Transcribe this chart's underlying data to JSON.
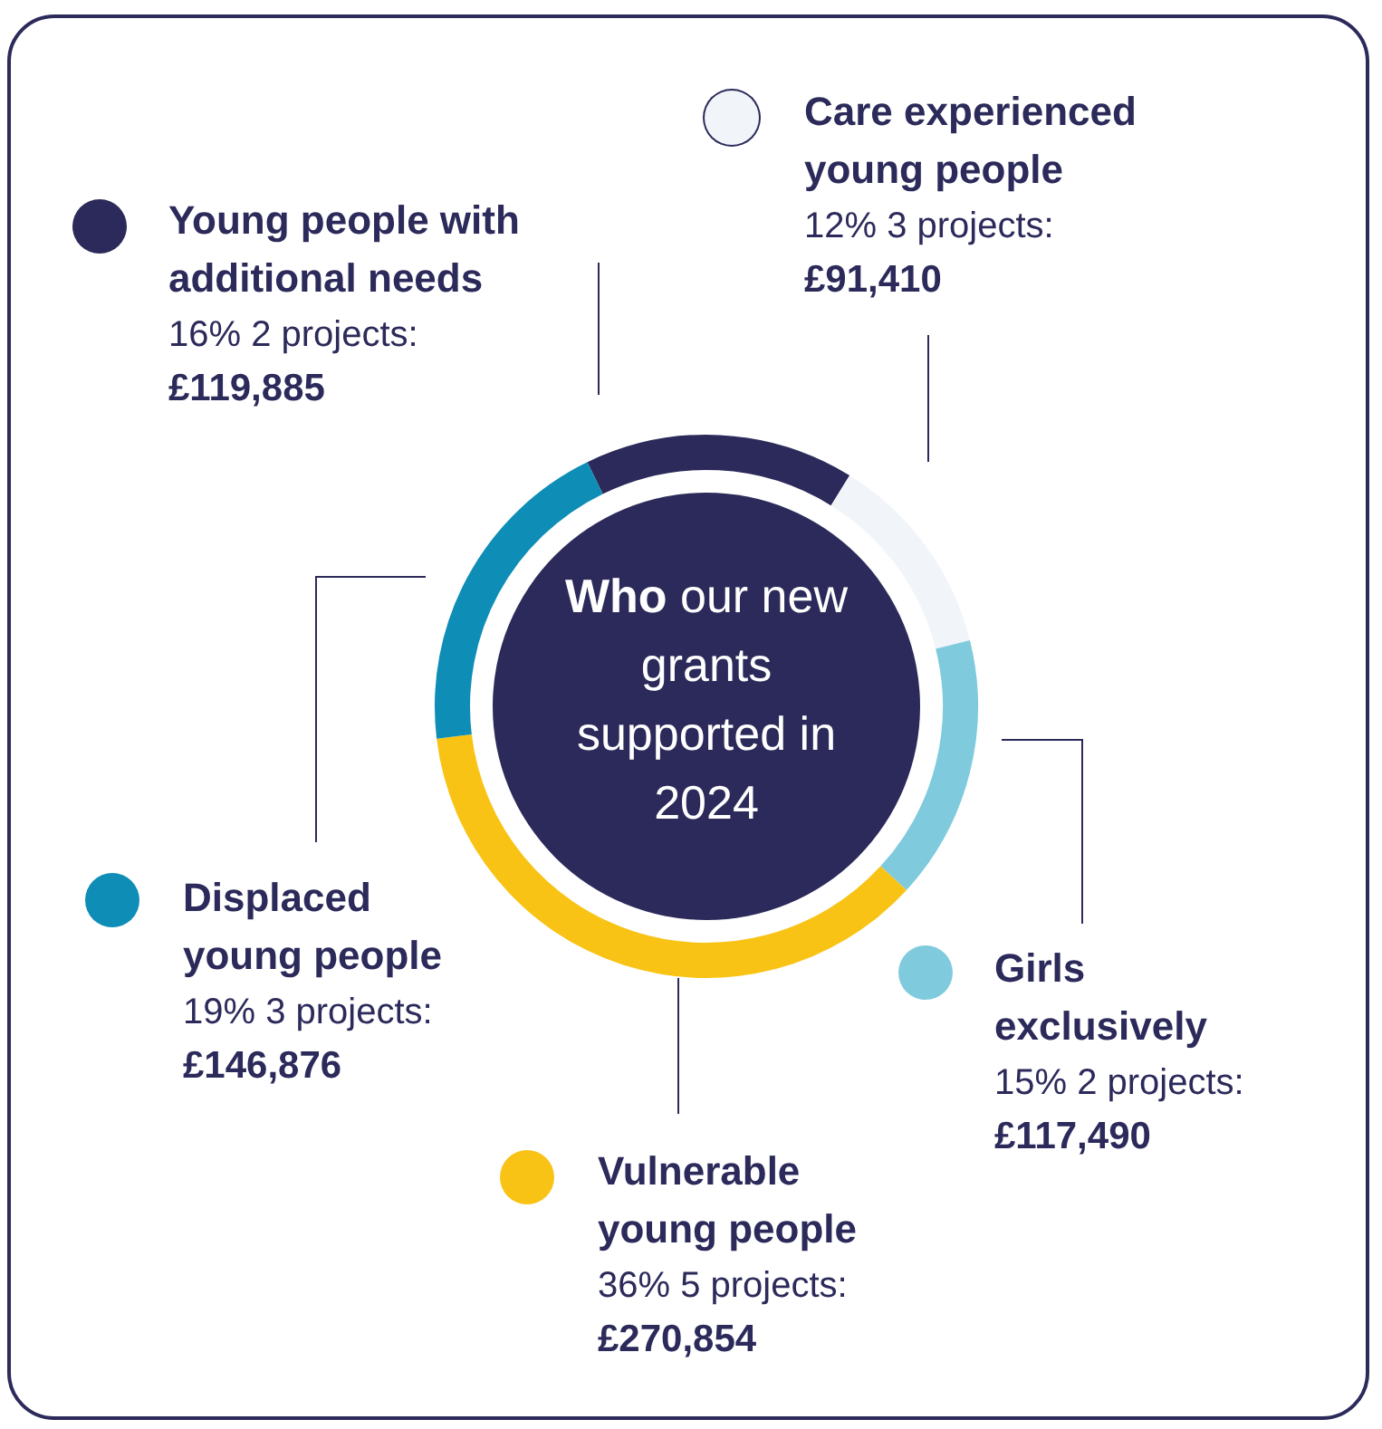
{
  "chart_data": {
    "type": "donut",
    "title": "Who our new grants supported in 2024",
    "categories": [
      "Young people with additional needs",
      "Care experienced young people",
      "Girls exclusively",
      "Vulnerable young people",
      "Displaced young people"
    ],
    "values": [
      119885,
      91410,
      117490,
      270854,
      146876
    ],
    "colors": [
      "#2b2a5a",
      "#f1f5f9",
      "#7fcbdd",
      "#f8c315",
      "#0e8db6"
    ],
    "legend": "top left",
    "value_labels": [
      "16% 2 projects: £119,885",
      "12% 3 projects: £91,410",
      "15% 2 projects: £117,490",
      "36% 5 projects: £270,854",
      "19% 3 projects: £146,876"
    ]
  }
}
